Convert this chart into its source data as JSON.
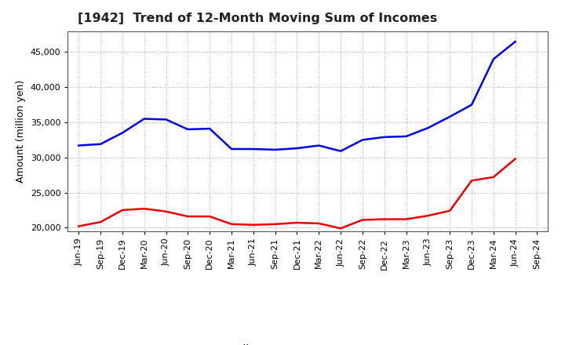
{
  "title": "[1942]  Trend of 12-Month Moving Sum of Incomes",
  "ylabel": "Amount (million yen)",
  "background_color": "#ffffff",
  "plot_bg_color": "#ffffff",
  "grid_color": "#999999",
  "x_labels": [
    "Jun-19",
    "Sep-19",
    "Dec-19",
    "Mar-20",
    "Jun-20",
    "Sep-20",
    "Dec-20",
    "Mar-21",
    "Jun-21",
    "Sep-21",
    "Dec-21",
    "Mar-22",
    "Jun-22",
    "Sep-22",
    "Dec-22",
    "Mar-23",
    "Jun-23",
    "Sep-23",
    "Dec-23",
    "Mar-24",
    "Jun-24",
    "Sep-24"
  ],
  "ordinary_income": [
    31700,
    31900,
    33500,
    35500,
    35400,
    34000,
    34100,
    31200,
    31200,
    31100,
    31300,
    31700,
    30900,
    32500,
    32900,
    33000,
    34200,
    35800,
    37500,
    44000,
    46500,
    null
  ],
  "net_income": [
    20200,
    20800,
    22500,
    22700,
    22300,
    21600,
    21600,
    20500,
    20400,
    20500,
    20700,
    20600,
    19900,
    21100,
    21200,
    21200,
    21700,
    22400,
    26700,
    27200,
    29800,
    null
  ],
  "ordinary_color": "#0000ee",
  "net_color": "#ee0000",
  "ylim_min": 19500,
  "ylim_max": 48000,
  "yticks": [
    20000,
    25000,
    30000,
    35000,
    40000,
    45000
  ],
  "line_width": 1.8,
  "title_fontsize": 11.5,
  "axis_label_fontsize": 9,
  "tick_fontsize": 8,
  "legend_fontsize": 9.5
}
